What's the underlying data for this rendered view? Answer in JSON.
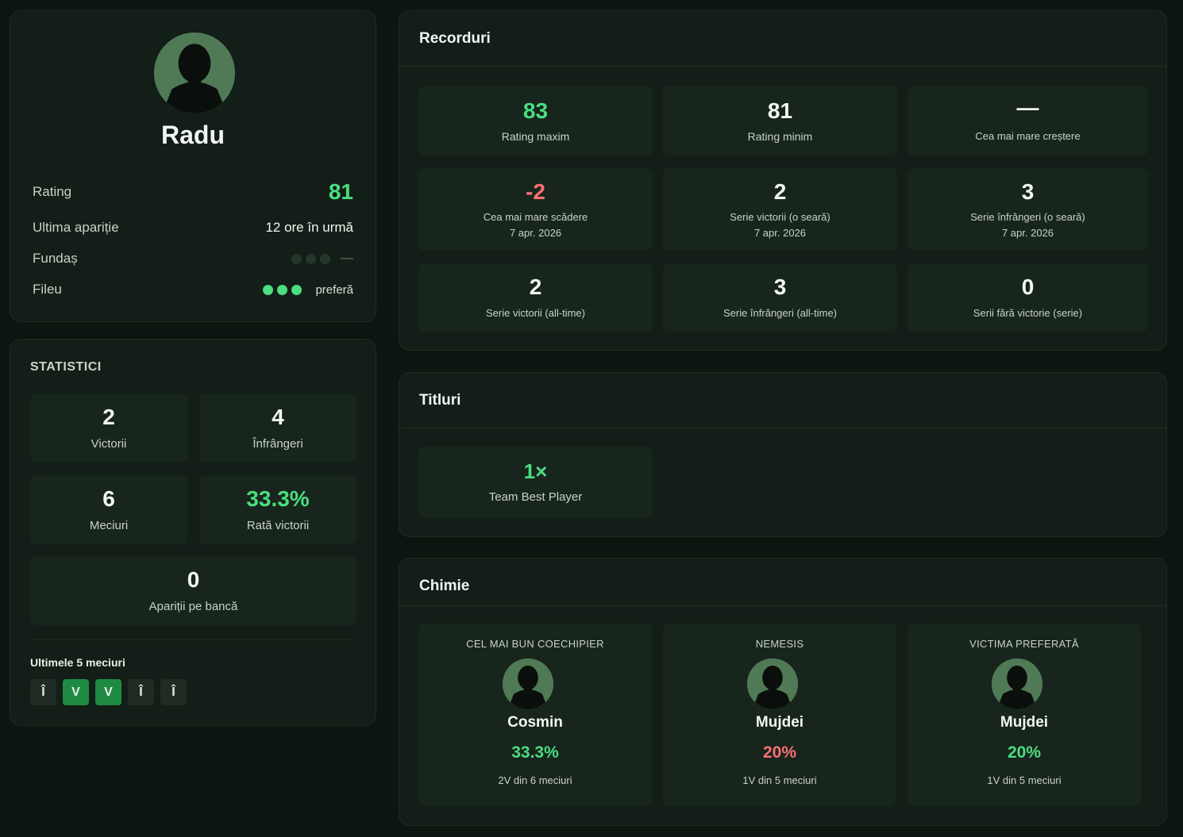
{
  "profile": {
    "name": "Radu",
    "rows": [
      {
        "label": "Rating",
        "value": "81"
      },
      {
        "label": "Ultima apariție",
        "value": "12 ore în urmă"
      },
      {
        "label": "Fundaș",
        "value": "—"
      },
      {
        "label": "Fileu",
        "value": "preferă"
      }
    ],
    "fundas_dots": [
      false,
      false,
      false
    ],
    "fileu_dots": [
      true,
      true,
      true
    ]
  },
  "stats": {
    "title": "STATISTICI",
    "tiles": [
      {
        "value": "2",
        "label": "Victorii"
      },
      {
        "value": "4",
        "label": "Înfrângeri"
      },
      {
        "value": "6",
        "label": "Meciuri"
      },
      {
        "value": "33.3%",
        "label": "Rată victorii"
      },
      {
        "value": "0",
        "label": "Apariții pe bancă"
      }
    ],
    "last5_label": "Ultimele 5 meciuri",
    "last5": [
      {
        "result": "Î",
        "win": false
      },
      {
        "result": "V",
        "win": true
      },
      {
        "result": "V",
        "win": true
      },
      {
        "result": "Î",
        "win": false
      },
      {
        "result": "Î",
        "win": false
      }
    ]
  },
  "records": {
    "title": "Recorduri",
    "tiles": [
      {
        "value": "83",
        "label": "Rating maxim",
        "sub": "",
        "color": "#4ade80"
      },
      {
        "value": "81",
        "label": "Rating minim",
        "sub": "",
        "color": "#f2f6f3"
      },
      {
        "value": "—",
        "label": "Cea mai mare creștere",
        "sub": "",
        "color": "#f2f6f3"
      },
      {
        "value": "-2",
        "label": "Cea mai mare scădere",
        "sub": "7 apr. 2026",
        "color": "#f87171"
      },
      {
        "value": "2",
        "label": "Serie victorii (o seară)",
        "sub": "7 apr. 2026",
        "color": "#f2f6f3"
      },
      {
        "value": "3",
        "label": "Serie înfrângeri (o seară)",
        "sub": "7 apr. 2026",
        "color": "#f2f6f3"
      },
      {
        "value": "2",
        "label": "Serie victorii (all-time)",
        "sub": "",
        "color": "#f2f6f3"
      },
      {
        "value": "3",
        "label": "Serie înfrângeri (all-time)",
        "sub": "",
        "color": "#f2f6f3"
      },
      {
        "value": "0",
        "label": "Serii fără victorie (serie)",
        "sub": "",
        "color": "#f2f6f3"
      }
    ]
  },
  "titles": {
    "title": "Titluri",
    "items": [
      {
        "count": "1×",
        "name": "Team Best Player"
      }
    ]
  },
  "chemistry": {
    "title": "Chimie",
    "items": [
      {
        "heading": "CEL MAI BUN COECHIPIER",
        "name": "Cosmin",
        "pct": "33.3%",
        "detail": "2V din 6 meciuri",
        "color": "#4ade80"
      },
      {
        "heading": "NEMESIS",
        "name": "Mujdei",
        "pct": "20%",
        "detail": "1V din 5 meciuri",
        "color": "#f87171"
      },
      {
        "heading": "VICTIMA PREFERATĂ",
        "name": "Mujdei",
        "pct": "20%",
        "detail": "1V din 5 meciuri",
        "color": "#4ade80"
      }
    ]
  },
  "colors": {
    "accent_green": "#4ade80",
    "loss_red": "#f87171",
    "win_badge": "#1f8a43",
    "background": "#0c1510",
    "card": "#121e17"
  }
}
